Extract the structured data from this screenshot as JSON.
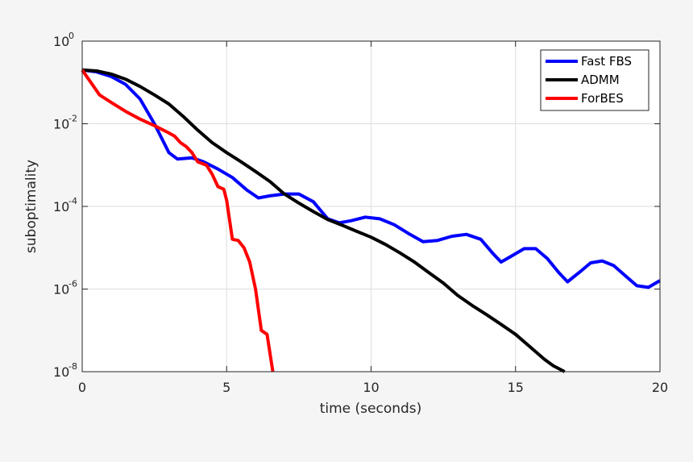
{
  "chart_data": {
    "type": "line",
    "xlabel": "time (seconds)",
    "ylabel": "suboptimality",
    "xlim": [
      0,
      20
    ],
    "ylim": [
      1e-08,
      1
    ],
    "yscale": "log",
    "grid": true,
    "legend_position": "top-right",
    "x_ticks": [
      {
        "value": 0,
        "label": "0"
      },
      {
        "value": 5,
        "label": "5"
      },
      {
        "value": 10,
        "label": "10"
      },
      {
        "value": 15,
        "label": "15"
      },
      {
        "value": 20,
        "label": "20"
      }
    ],
    "y_ticks": [
      {
        "value": 1,
        "base": "10",
        "exp": "0"
      },
      {
        "value": 0.01,
        "base": "10",
        "exp": "-2"
      },
      {
        "value": 0.0001,
        "base": "10",
        "exp": "-4"
      },
      {
        "value": 1e-06,
        "base": "10",
        "exp": "-6"
      },
      {
        "value": 1e-08,
        "base": "10",
        "exp": "-8"
      }
    ],
    "series": [
      {
        "name": "Fast FBS",
        "color": "#0000ff",
        "points": [
          [
            0,
            0.2
          ],
          [
            0.5,
            0.18
          ],
          [
            1.0,
            0.14
          ],
          [
            1.5,
            0.09
          ],
          [
            2.0,
            0.04
          ],
          [
            2.5,
            0.01
          ],
          [
            3.0,
            0.002
          ],
          [
            3.3,
            0.0014
          ],
          [
            3.8,
            0.0015
          ],
          [
            4.2,
            0.0012
          ],
          [
            4.7,
            0.0008
          ],
          [
            5.2,
            0.0005
          ],
          [
            5.7,
            0.00025
          ],
          [
            6.1,
            0.00016
          ],
          [
            6.5,
            0.00018
          ],
          [
            7.0,
            0.0002
          ],
          [
            7.5,
            0.0002
          ],
          [
            8.0,
            0.00013
          ],
          [
            8.5,
            5e-05
          ],
          [
            8.9,
            4e-05
          ],
          [
            9.3,
            4.5e-05
          ],
          [
            9.8,
            5.5e-05
          ],
          [
            10.3,
            5e-05
          ],
          [
            10.8,
            3.6e-05
          ],
          [
            11.3,
            2.2e-05
          ],
          [
            11.8,
            1.4e-05
          ],
          [
            12.3,
            1.5e-05
          ],
          [
            12.8,
            1.9e-05
          ],
          [
            13.3,
            2.1e-05
          ],
          [
            13.8,
            1.6e-05
          ],
          [
            14.2,
            7.5e-06
          ],
          [
            14.5,
            4.5e-06
          ],
          [
            14.9,
            6.5e-06
          ],
          [
            15.3,
            9.5e-06
          ],
          [
            15.7,
            9.5e-06
          ],
          [
            16.1,
            5.5e-06
          ],
          [
            16.5,
            2.5e-06
          ],
          [
            16.8,
            1.5e-06
          ],
          [
            17.2,
            2.5e-06
          ],
          [
            17.6,
            4.3e-06
          ],
          [
            18.0,
            4.8e-06
          ],
          [
            18.4,
            3.7e-06
          ],
          [
            18.8,
            2.1e-06
          ],
          [
            19.2,
            1.2e-06
          ],
          [
            19.6,
            1.1e-06
          ],
          [
            20.0,
            1.6e-06
          ]
        ]
      },
      {
        "name": "ADMM",
        "color": "#000000",
        "points": [
          [
            0,
            0.2
          ],
          [
            0.5,
            0.19
          ],
          [
            1.0,
            0.16
          ],
          [
            1.5,
            0.12
          ],
          [
            2.0,
            0.08
          ],
          [
            2.5,
            0.05
          ],
          [
            3.0,
            0.03
          ],
          [
            3.5,
            0.015
          ],
          [
            4.0,
            0.007
          ],
          [
            4.5,
            0.0035
          ],
          [
            5.0,
            0.002
          ],
          [
            5.5,
            0.0012
          ],
          [
            6.0,
            0.0007
          ],
          [
            6.5,
            0.0004
          ],
          [
            7.0,
            0.0002
          ],
          [
            7.5,
            0.00012
          ],
          [
            8.0,
            7.5e-05
          ],
          [
            8.5,
            4.8e-05
          ],
          [
            9.0,
            3.5e-05
          ],
          [
            9.5,
            2.5e-05
          ],
          [
            10.0,
            1.8e-05
          ],
          [
            10.5,
            1.2e-05
          ],
          [
            11.0,
            7.5e-06
          ],
          [
            11.5,
            4.5e-06
          ],
          [
            12.0,
            2.5e-06
          ],
          [
            12.5,
            1.4e-06
          ],
          [
            13.0,
            7e-07
          ],
          [
            13.5,
            4e-07
          ],
          [
            14.0,
            2.4e-07
          ],
          [
            14.5,
            1.4e-07
          ],
          [
            15.0,
            8e-08
          ],
          [
            15.5,
            4e-08
          ],
          [
            16.0,
            2e-08
          ],
          [
            16.3,
            1.4e-08
          ],
          [
            16.7,
            1e-08
          ]
        ]
      },
      {
        "name": "ForBES",
        "color": "#ff0000",
        "points": [
          [
            0,
            0.2
          ],
          [
            0.3,
            0.1
          ],
          [
            0.6,
            0.05
          ],
          [
            1.0,
            0.033
          ],
          [
            1.5,
            0.02
          ],
          [
            2.0,
            0.013
          ],
          [
            2.5,
            0.009
          ],
          [
            3.0,
            0.006
          ],
          [
            3.2,
            0.005
          ],
          [
            3.4,
            0.0035
          ],
          [
            3.6,
            0.0028
          ],
          [
            3.8,
            0.002
          ],
          [
            4.0,
            0.0012
          ],
          [
            4.3,
            0.001
          ],
          [
            4.5,
            0.0006
          ],
          [
            4.7,
            0.0003
          ],
          [
            4.9,
            0.00026
          ],
          [
            5.0,
            0.00014
          ],
          [
            5.2,
            1.6e-05
          ],
          [
            5.4,
            1.5e-05
          ],
          [
            5.6,
            1e-05
          ],
          [
            5.8,
            4.5e-06
          ],
          [
            6.0,
            1e-06
          ],
          [
            6.2,
            1e-07
          ],
          [
            6.4,
            8e-08
          ],
          [
            6.6,
            1e-08
          ]
        ]
      }
    ]
  }
}
